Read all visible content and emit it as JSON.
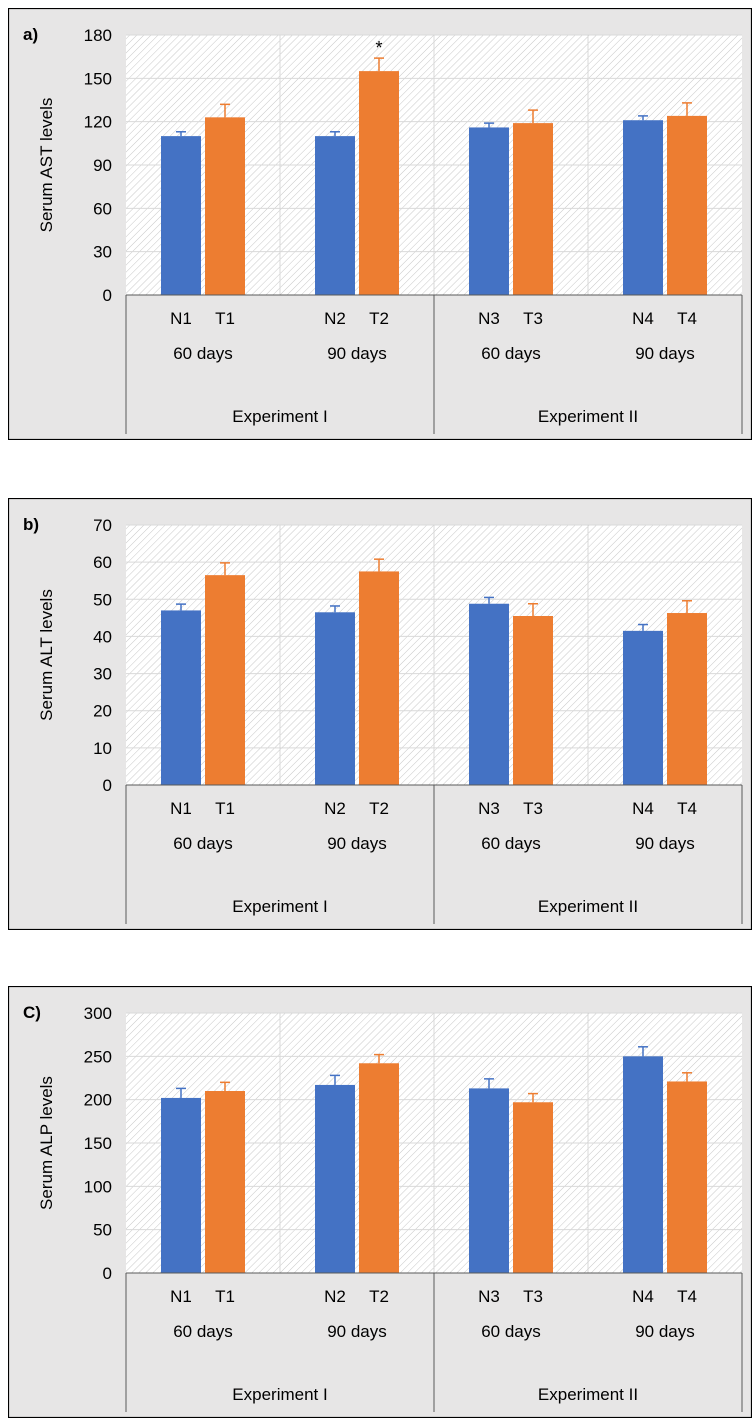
{
  "chart_data": [
    {
      "panel_label": "a)",
      "type": "bar",
      "ylabel": "Serum AST levels",
      "ylim": [
        0,
        180
      ],
      "yticks": [
        0,
        30,
        60,
        90,
        120,
        150,
        180
      ],
      "categories": [
        "N1",
        "T1",
        "N2",
        "T2",
        "N3",
        "T3",
        "N4",
        "T4"
      ],
      "values": [
        110,
        123,
        110,
        155,
        116,
        119,
        121,
        124
      ],
      "errors": [
        3,
        9,
        3,
        9,
        3,
        9,
        3,
        9
      ],
      "significance": [
        "",
        "",
        "",
        "*",
        "",
        "",
        "",
        ""
      ],
      "durations": [
        "60 days",
        "90 days",
        "60 days",
        "90 days"
      ],
      "experiments": [
        "Experiment I",
        "Experiment II"
      ],
      "grid": true
    },
    {
      "panel_label": "b)",
      "type": "bar",
      "ylabel": "Serum ALT levels",
      "ylim": [
        0,
        70
      ],
      "yticks": [
        0,
        10,
        20,
        30,
        40,
        50,
        60,
        70
      ],
      "categories": [
        "N1",
        "T1",
        "N2",
        "T2",
        "N3",
        "T3",
        "N4",
        "T4"
      ],
      "values": [
        47,
        56.5,
        46.5,
        57.5,
        48.8,
        45.5,
        41.5,
        46.3
      ],
      "errors": [
        1.7,
        3.3,
        1.7,
        3.3,
        1.7,
        3.3,
        1.7,
        3.3
      ],
      "significance": [
        "",
        "",
        "",
        "",
        "",
        "",
        "",
        ""
      ],
      "durations": [
        "60 days",
        "90 days",
        "60 days",
        "90 days"
      ],
      "experiments": [
        "Experiment I",
        "Experiment II"
      ],
      "grid": true
    },
    {
      "panel_label": "C)",
      "type": "bar",
      "ylabel": "Serum ALP levels",
      "ylim": [
        0,
        300
      ],
      "yticks": [
        0,
        50,
        100,
        150,
        200,
        250,
        300
      ],
      "categories": [
        "N1",
        "T1",
        "N2",
        "T2",
        "N3",
        "T3",
        "N4",
        "T4"
      ],
      "values": [
        202,
        210,
        217,
        242,
        213,
        197,
        250,
        221
      ],
      "errors": [
        11,
        10,
        11,
        10,
        11,
        10,
        11,
        10
      ],
      "significance": [
        "",
        "",
        "",
        "",
        "",
        "",
        "",
        ""
      ],
      "durations": [
        "60 days",
        "90 days",
        "60 days",
        "90 days"
      ],
      "experiments": [
        "Experiment I",
        "Experiment II"
      ],
      "grid": true
    }
  ],
  "colors": {
    "control": "#4472C4",
    "treated": "#ED7D31",
    "panel_bg": "#E7E6E6",
    "border": "#000000",
    "gridline": "#D9D9D9",
    "hatch": "#C8C8C8",
    "axis": "#595959"
  }
}
